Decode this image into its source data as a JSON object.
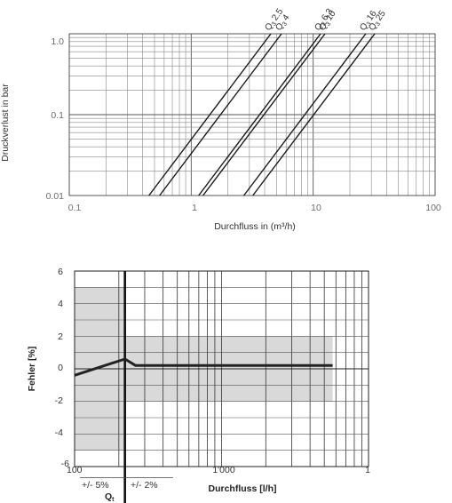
{
  "chart_data": [
    {
      "type": "line",
      "xlabel": "Durchfluss in (m³/h)",
      "ylabel": "Druckverlust in bar",
      "x_scale": "log",
      "y_scale": "log",
      "xlim": [
        0.1,
        100
      ],
      "ylim": [
        0.01,
        1.0
      ],
      "x_ticks": [
        "0.1",
        "1",
        "10",
        "100"
      ],
      "y_ticks": [
        "0.01",
        "0.1",
        "1.0"
      ],
      "grid": true,
      "series": [
        {
          "name": "Q3 2.5",
          "label_main": "Q",
          "label_sub": "3",
          "label_value": "2.5",
          "x": [
            0.45,
            4.5
          ],
          "y": [
            0.01,
            1.0
          ]
        },
        {
          "name": "Q3 4",
          "label_main": "Q",
          "label_sub": "3",
          "label_value": "4",
          "x": [
            0.55,
            5.5
          ],
          "y": [
            0.01,
            1.0
          ]
        },
        {
          "name": "Q3 6.3",
          "label_main": "Q",
          "label_sub": "3",
          "label_value": "6.3",
          "x": [
            1.15,
            11.5
          ],
          "y": [
            0.01,
            1.0
          ]
        },
        {
          "name": "Q3 10",
          "label_main": "Q",
          "label_sub": "3",
          "label_value": "10",
          "x": [
            1.25,
            12.5
          ],
          "y": [
            0.01,
            1.0
          ]
        },
        {
          "name": "Q3 16",
          "label_main": "Q",
          "label_sub": "3",
          "label_value": "16",
          "x": [
            2.7,
            27
          ],
          "y": [
            0.01,
            1.0
          ]
        },
        {
          "name": "Q3 25",
          "label_main": "Q",
          "label_sub": "3",
          "label_value": "25",
          "x": [
            3.2,
            32
          ],
          "y": [
            0.01,
            1.0
          ]
        }
      ]
    },
    {
      "type": "line",
      "xlabel": "Durchfluss [l/h]",
      "ylabel": "Fehler [%]",
      "x_scale": "log",
      "xlim": [
        100,
        10000
      ],
      "ylim": [
        -6,
        6
      ],
      "x_ticks": [
        "100",
        "1'000",
        "1"
      ],
      "y_ticks": [
        "6",
        "4",
        "2",
        "0",
        "-2",
        "-4",
        "-6"
      ],
      "grid": true,
      "annotations": {
        "left_tolerance": "+/- 5%",
        "right_tolerance": "+/- 2%",
        "q_marker_main": "Q",
        "q_marker_sub": "t"
      },
      "tolerance_bands": [
        {
          "x": [
            100,
            220
          ],
          "y": [
            -5,
            5
          ],
          "color": "#d9d9d9"
        },
        {
          "x": [
            220,
            5700
          ],
          "y": [
            -2,
            2
          ],
          "color": "#d9d9d9"
        }
      ],
      "transition_x": 220,
      "series": [
        {
          "name": "",
          "x": [
            100,
            220,
            260,
            5700
          ],
          "y": [
            -0.4,
            0.6,
            0.2,
            0.2
          ]
        }
      ]
    }
  ]
}
